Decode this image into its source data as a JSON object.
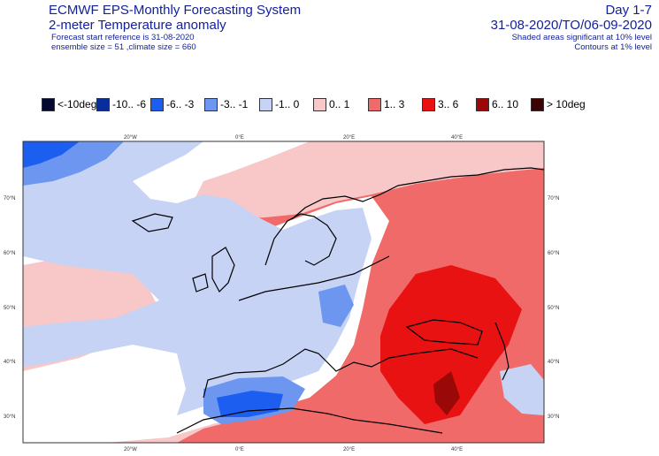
{
  "header": {
    "system": "ECMWF EPS-Monthly Forecasting System",
    "title": "2-meter Temperature anomaly",
    "start_ref": "Forecast start reference is 31-08-2020",
    "ensemble": "ensemble size = 51  ,climate size = 660",
    "period_label": "Day 1-7",
    "period_dates": "31-08-2020/TO/06-09-2020",
    "shading_note": "Shaded areas significant at 10% level",
    "contour_note": "Contours at 1% level"
  },
  "legend": [
    {
      "label": "<-10deg",
      "color": "#05082e"
    },
    {
      "label": "-10.. -6",
      "color": "#0a2d9c"
    },
    {
      "label": "-6.. -3",
      "color": "#1c5ef0"
    },
    {
      "label": "-3.. -1",
      "color": "#6c96ef"
    },
    {
      "label": "-1.. 0",
      "color": "#c6d3f4"
    },
    {
      "label": "0.. 1",
      "color": "#f8c8c8"
    },
    {
      "label": "1.. 3",
      "color": "#f06a6a"
    },
    {
      "label": "3.. 6",
      "color": "#e81212"
    },
    {
      "label": "6.. 10",
      "color": "#9a0808"
    },
    {
      "label": "> 10deg",
      "color": "#3a0404"
    }
  ],
  "axes": {
    "lon_labels": [
      "20°W",
      "0°E",
      "20°E",
      "40°E"
    ],
    "lat_labels": [
      "70°N",
      "60°N",
      "50°N",
      "40°N",
      "30°N"
    ]
  }
}
